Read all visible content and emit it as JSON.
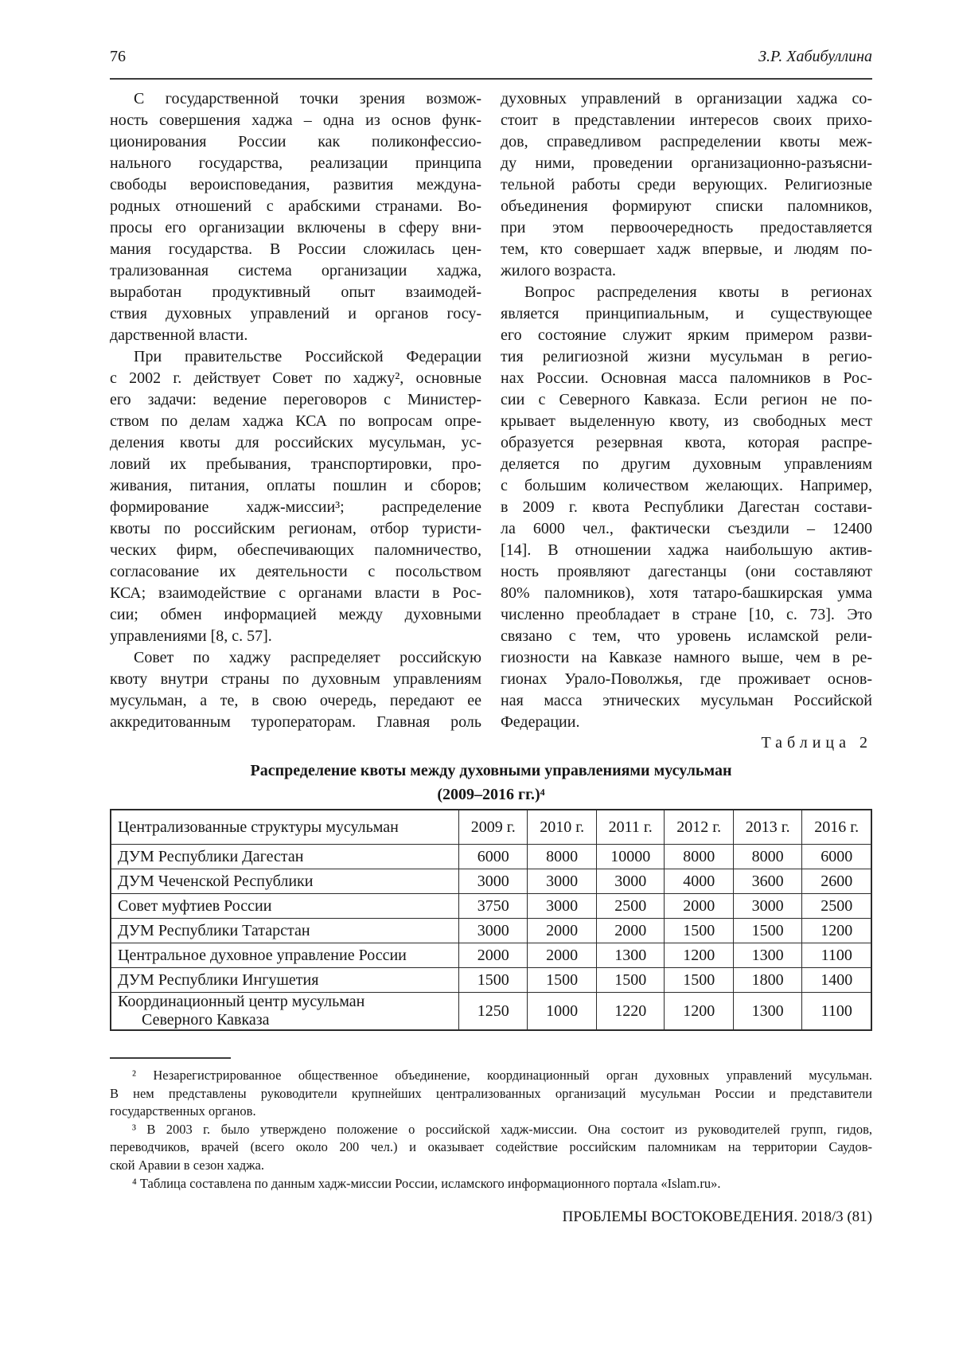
{
  "header": {
    "page_number": "76",
    "author": "З.Р. Хабибуллина"
  },
  "article": {
    "columns": {
      "left": [
        {
          "text": "С государственной точки зрения возмож-",
          "indent": true
        },
        {
          "text": "ность совершения хаджа – одна из основ функ-"
        },
        {
          "text": "ционирования России как поликонфессио-"
        },
        {
          "text": "нального государства, реализации принципа"
        },
        {
          "text": "свободы вероисповедания, развития междуна-"
        },
        {
          "text": "родных отношений с арабскими странами. Во-"
        },
        {
          "text": "просы его организации включены в сферу вни-"
        },
        {
          "text": "мания государства. В России сложилась цен-"
        },
        {
          "text": "трализованная система организации хаджа,"
        },
        {
          "text": "выработан продуктивный опыт взаимодей-"
        },
        {
          "text": "ствия духовных управлений и органов госу-"
        },
        {
          "text": "дарственной власти.",
          "end": true
        },
        {
          "text": "При правительстве Российской Федерации",
          "indent": true
        },
        {
          "text": "с 2002 г. действует Совет по хаджу², основные"
        },
        {
          "text": "его задачи: ведение переговоров с Министер-"
        },
        {
          "text": "ством по делам хаджа КСА по вопросам опре-"
        },
        {
          "text": "деления квоты для российских мусульман, ус-"
        },
        {
          "text": "ловий их пребывания, транспортировки, про-"
        },
        {
          "text": "живания, питания, оплаты пошлин и сборов;"
        },
        {
          "text": "формирование хадж-миссии³; распределение"
        },
        {
          "text": "квоты по российским регионам, отбор туристи-"
        },
        {
          "text": "ческих фирм, обеспечивающих паломничество,"
        },
        {
          "text": "согласование их деятельности с посольством"
        },
        {
          "text": "КСА; взаимодействие с органами власти в Рос-"
        },
        {
          "text": "сии; обмен информацией между духовными"
        },
        {
          "text": "управлениями [8, с. 57].",
          "end": true
        },
        {
          "text": "Совет по хаджу распределяет российскую",
          "indent": true
        },
        {
          "text": "квоту внутри страны по духовным управлениям"
        },
        {
          "text": "мусульман, а те, в свою очередь, передают ее"
        },
        {
          "text": "аккредитованным туроператорам. Главная роль"
        }
      ],
      "right": [
        {
          "text": "духовных управлений в организации хаджа со-"
        },
        {
          "text": "стоит в представлении интересов своих прихо-"
        },
        {
          "text": "дов, справедливом распределении квоты меж-"
        },
        {
          "text": "ду ними, проведении организационно-разъясни-"
        },
        {
          "text": "тельной работы среди верующих. Религиозные"
        },
        {
          "text": "объединения формируют списки паломников,"
        },
        {
          "text": "при этом первоочередность предоставляется"
        },
        {
          "text": "тем, кто совершает хадж впервые, и людям по-"
        },
        {
          "text": "жилого возраста.",
          "end": true
        },
        {
          "text": "Вопрос распределения квоты в регионах",
          "indent": true
        },
        {
          "text": "является принципиальным, и существующее"
        },
        {
          "text": "его состояние служит ярким примером разви-"
        },
        {
          "text": "тия религиозной жизни мусульман в регио-"
        },
        {
          "text": "нах России. Основная масса паломников в Рос-"
        },
        {
          "text": "сии с Северного Кавказа. Если регион не по-"
        },
        {
          "text": "крывает выделенную квоту, из свободных мест"
        },
        {
          "text": "образуется резервная квота, которая распре-"
        },
        {
          "text": "деляется по другим духовным управлениям"
        },
        {
          "text": "с большим количеством желающих. Например,"
        },
        {
          "text": "в 2009 г. квота Республики Дагестан состави-"
        },
        {
          "text": "ла 6000 чел., фактически съездили – 12400"
        },
        {
          "text": "[14]. В отношении хаджа наибольшую актив-"
        },
        {
          "text": "ность проявляют дагестанцы (они составляют"
        },
        {
          "text": "80% паломников), хотя татаро-башкирская умма"
        },
        {
          "text": "численно преобладает в стране [10, с. 73]. Это"
        },
        {
          "text": "связано с тем, что уровень исламской рели-"
        },
        {
          "text": "гиозности на Кавказе намного выше, чем в ре-"
        },
        {
          "text": "гионах Урало-Поволжья, где проживает основ-"
        },
        {
          "text": "ная масса этнических мусульман Российской"
        },
        {
          "text": "Федерации.",
          "end": true
        }
      ]
    }
  },
  "table": {
    "caption": "Таблица 2",
    "title": "Распределение квоты между духовными управлениями мусульман",
    "subtitle": "(2009–2016 гг.)⁴",
    "col_header": "Централизованные структуры мусульман",
    "year_headers": [
      "2009 г.",
      "2010 г.",
      "2011 г.",
      "2012 г.",
      "2013 г.",
      "2016 г."
    ],
    "rows": [
      {
        "name_lines": [
          "ДУМ Республики Дагестан"
        ],
        "values": [
          "6000",
          "8000",
          "10000",
          "8000",
          "8000",
          "6000"
        ]
      },
      {
        "name_lines": [
          "ДУМ Чеченской Республики"
        ],
        "values": [
          "3000",
          "3000",
          "3000",
          "4000",
          "3600",
          "2600"
        ]
      },
      {
        "name_lines": [
          "Совет муфтиев России"
        ],
        "values": [
          "3750",
          "3000",
          "2500",
          "2000",
          "3000",
          "2500"
        ]
      },
      {
        "name_lines": [
          "ДУМ Республики Татарстан"
        ],
        "values": [
          "3000",
          "2000",
          "2000",
          "1500",
          "1500",
          "1200"
        ]
      },
      {
        "name_lines": [
          "Центральное духовное управление России"
        ],
        "values": [
          "2000",
          "2000",
          "1300",
          "1200",
          "1300",
          "1100"
        ]
      },
      {
        "name_lines": [
          "ДУМ Республики Ингушетия"
        ],
        "values": [
          "1500",
          "1500",
          "1500",
          "1500",
          "1800",
          "1400"
        ]
      },
      {
        "name_lines": [
          "Координационный центр мусульман",
          "Северного Кавказа"
        ],
        "values": [
          "1250",
          "1000",
          "1220",
          "1200",
          "1300",
          "1100"
        ]
      }
    ]
  },
  "footnotes": [
    {
      "text": "² Незарегистрированное общественное объединение, координационный орган духовных управлений мусульман.",
      "indent": true
    },
    {
      "text": "В нем представлены руководители крупнейших централизованных организаций мусульман России и представители"
    },
    {
      "text": "государственных органов.",
      "end": true
    },
    {
      "text": "³ В 2003 г. было утверждено положение о российской хадж-миссии. Она состоит из руководителей групп, гидов,",
      "indent": true
    },
    {
      "text": "переводчиков, врачей (всего около 200 чел.) и оказывает содействие российским паломникам на территории Саудов-"
    },
    {
      "text": "ской Аравии в сезон хаджа.",
      "end": true
    },
    {
      "text": "⁴ Таблица составлена по данным хадж-миссии России, исламского информационного портала «Islam.ru».",
      "indent": true,
      "end": true
    }
  ],
  "footer": {
    "journal": "ПРОБЛЕМЫ ВОСТОКОВЕДЕНИЯ. 2018/3 (81)"
  }
}
